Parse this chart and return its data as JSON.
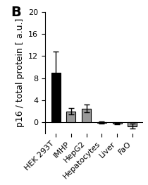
{
  "categories": [
    "HEK 293T",
    "IMHP",
    "HepG2",
    "Hepatocytes",
    "Liver",
    "FaO"
  ],
  "values": [
    9.0,
    2.0,
    2.5,
    -0.1,
    -0.2,
    -0.7
  ],
  "errors": [
    3.8,
    0.6,
    0.7,
    0.2,
    0.15,
    0.4
  ],
  "bar_colors": [
    "#000000",
    "#999999",
    "#999999",
    "#999999",
    "#999999",
    "#999999"
  ],
  "ylabel": "p16 / total protein [ a.u.]",
  "panel_label": "B",
  "ylim": [
    -2,
    20
  ],
  "yticks": [
    0,
    4,
    8,
    12,
    16,
    20
  ],
  "background_color": "#ffffff",
  "bar_width": 0.6,
  "title_fontsize": 11,
  "label_fontsize": 9,
  "tick_fontsize": 8
}
